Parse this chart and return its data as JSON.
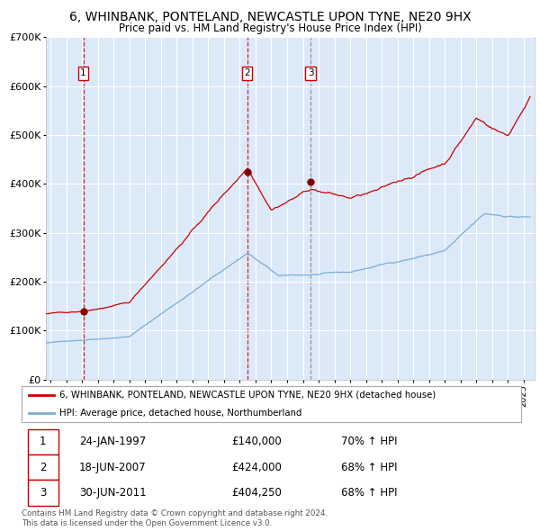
{
  "title": "6, WHINBANK, PONTELAND, NEWCASTLE UPON TYNE, NE20 9HX",
  "subtitle": "Price paid vs. HM Land Registry's House Price Index (HPI)",
  "bg_color": "#dce9f8",
  "fig_bg_color": "#ffffff",
  "red_line_color": "#cc0000",
  "blue_line_color": "#7aadd4",
  "marker_color": "#880000",
  "sale_dates_year": [
    1997.07,
    2007.46,
    2011.49
  ],
  "sale_prices": [
    140000,
    424000,
    404250
  ],
  "sale_labels": [
    "1",
    "2",
    "3"
  ],
  "legend_line1": "6, WHINBANK, PONTELAND, NEWCASTLE UPON TYNE, NE20 9HX (detached house)",
  "legend_line2": "HPI: Average price, detached house, Northumberland",
  "table_rows": [
    [
      "1",
      "24-JAN-1997",
      "£140,000",
      "70% ↑ HPI"
    ],
    [
      "2",
      "18-JUN-2007",
      "£424,000",
      "68% ↑ HPI"
    ],
    [
      "3",
      "30-JUN-2011",
      "£404,250",
      "68% ↑ HPI"
    ]
  ],
  "footer": "Contains HM Land Registry data © Crown copyright and database right 2024.\nThis data is licensed under the Open Government Licence v3.0.",
  "ylim": [
    0,
    700000
  ],
  "yticks": [
    0,
    100000,
    200000,
    300000,
    400000,
    500000,
    600000,
    700000
  ],
  "ytick_labels": [
    "£0",
    "£100K",
    "£200K",
    "£300K",
    "£400K",
    "£500K",
    "£600K",
    "£700K"
  ],
  "xlim_start": 1994.7,
  "xlim_end": 2025.7
}
